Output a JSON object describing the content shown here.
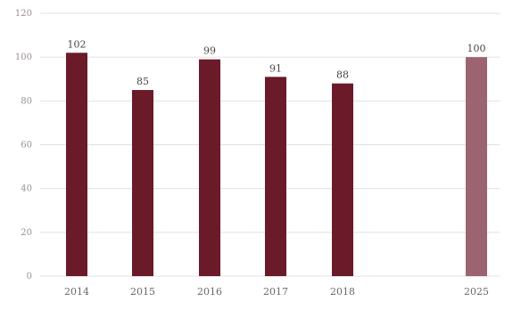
{
  "chart_data": {
    "type": "bar",
    "categories": [
      "2014",
      "2015",
      "2016",
      "2017",
      "2018",
      "2025"
    ],
    "values": [
      102,
      85,
      99,
      91,
      88,
      100
    ],
    "data_labels": [
      "102",
      "85",
      "99",
      "91",
      "88",
      "100"
    ],
    "ylim": [
      0,
      120
    ],
    "yticks": [
      0,
      20,
      40,
      60,
      80,
      100,
      120
    ],
    "ytick_labels": [
      "0",
      "20",
      "40",
      "60",
      "80",
      "100",
      "120"
    ],
    "grid": true,
    "colors": {
      "bar_primary": "#6b1a2a",
      "bar_target": "#9b6470"
    }
  }
}
